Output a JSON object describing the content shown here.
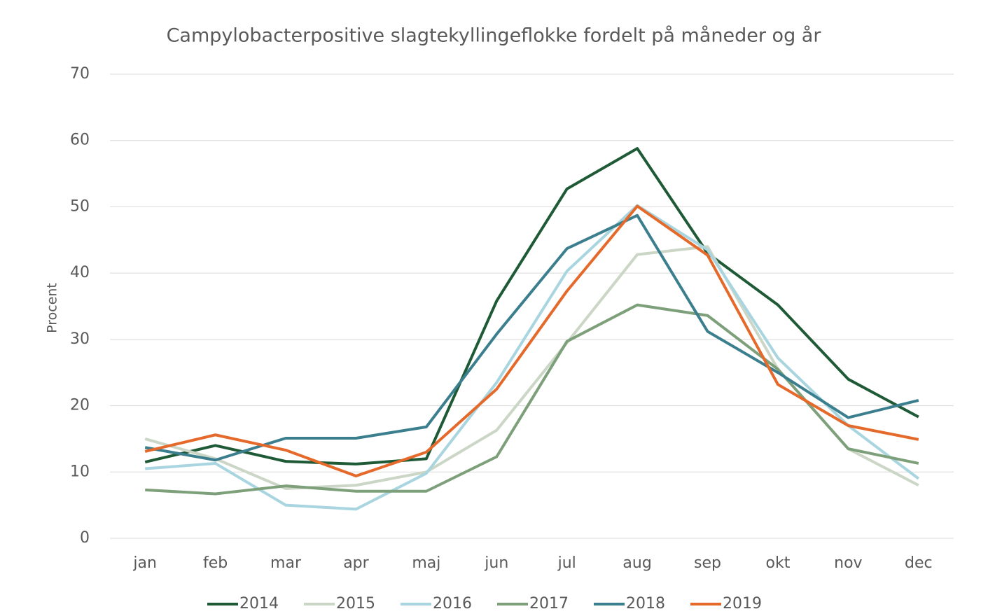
{
  "chart_data": {
    "type": "line",
    "title": "Campylobacterpositive slagtekyllingeflokke fordelt på måneder og år",
    "y_label": "Procent",
    "categories": [
      "jan",
      "feb",
      "mar",
      "apr",
      "maj",
      "jun",
      "jul",
      "aug",
      "sep",
      "okt",
      "nov",
      "dec"
    ],
    "series": [
      {
        "name": "2014",
        "color": "#1f5a36",
        "values": [
          11.5,
          14,
          11.6,
          11.2,
          12,
          35.8,
          52.7,
          58.8,
          43,
          35.2,
          24,
          18.3
        ]
      },
      {
        "name": "2015",
        "color": "#cbd6c6",
        "values": [
          15,
          12,
          7.5,
          8,
          10,
          16.3,
          29.5,
          42.8,
          44,
          25.5,
          13.5,
          8
        ]
      },
      {
        "name": "2016",
        "color": "#a8d5df",
        "values": [
          10.5,
          11.3,
          5,
          4.4,
          9.8,
          23.5,
          40.3,
          50.2,
          43.5,
          27.2,
          17,
          9
        ]
      },
      {
        "name": "2017",
        "color": "#7d9f7a",
        "values": [
          7.3,
          6.7,
          7.9,
          7.1,
          7.1,
          12.3,
          29.7,
          35.2,
          33.6,
          25.5,
          13.5,
          11.3
        ]
      },
      {
        "name": "2018",
        "color": "#3b7f8e",
        "values": [
          13.7,
          11.8,
          15.1,
          15.1,
          16.8,
          30.8,
          43.7,
          48.7,
          31.2,
          25,
          18.2,
          20.8
        ]
      },
      {
        "name": "2019",
        "color": "#e4692a",
        "values": [
          13.1,
          15.6,
          13.3,
          9.4,
          13,
          22.5,
          37.3,
          50.1,
          42.7,
          23.2,
          17,
          14.9
        ]
      }
    ],
    "ylim": [
      0,
      70
    ],
    "yticks": [
      0,
      10,
      20,
      30,
      40,
      50,
      60,
      70
    ],
    "grid": true,
    "legend": "bottom"
  }
}
